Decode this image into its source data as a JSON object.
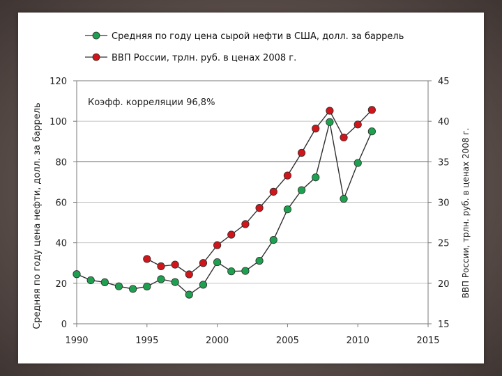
{
  "chart_data": {
    "type": "line",
    "annotation": "Коэфф. корреляции 96,8%",
    "xlabel": "",
    "xlim": [
      1990,
      2015
    ],
    "x_ticks": [
      1990,
      1995,
      2000,
      2005,
      2010,
      2015
    ],
    "ylabel_left": "Средняя по году цена нефти, долл. за баррель",
    "ylim_left": [
      0,
      120
    ],
    "y_ticks_left": [
      0,
      20,
      40,
      60,
      80,
      100,
      120
    ],
    "ylabel_right": "ВВП России, трлн. руб. в ценах 2008 г.",
    "ylim_right": [
      15,
      45
    ],
    "y_ticks_right": [
      15,
      20,
      25,
      30,
      35,
      40,
      45
    ],
    "grid": true,
    "legend_position": "top",
    "series": [
      {
        "name": "Средняя по году цена сырой нефти в США, долл. за баррель",
        "axis": "left",
        "color": "#1fa050",
        "x": [
          1990,
          1991,
          1992,
          1993,
          1994,
          1995,
          1996,
          1997,
          1998,
          1999,
          2000,
          2001,
          2002,
          2003,
          2004,
          2005,
          2006,
          2007,
          2008,
          2009,
          2010,
          2011
        ],
        "values": [
          24.5,
          21.5,
          20.5,
          18.5,
          17.2,
          18.4,
          22,
          20.6,
          14.4,
          19.3,
          30.4,
          25.9,
          26.1,
          31.1,
          41.4,
          56.5,
          66,
          72.3,
          99.6,
          61.7,
          79.4,
          95
        ]
      },
      {
        "name": "ВВП России, трлн. руб. в ценах 2008 г.",
        "axis": "right",
        "color": "#d0161b",
        "x": [
          1995,
          1996,
          1997,
          1998,
          1999,
          2000,
          2001,
          2002,
          2003,
          2004,
          2005,
          2006,
          2007,
          2008,
          2009,
          2010,
          2011
        ],
        "values": [
          23,
          22.1,
          22.3,
          21.1,
          22.5,
          24.7,
          26,
          27.3,
          29.3,
          31.3,
          33.3,
          36.1,
          39.1,
          41.3,
          38,
          39.6,
          41.4
        ]
      }
    ]
  }
}
